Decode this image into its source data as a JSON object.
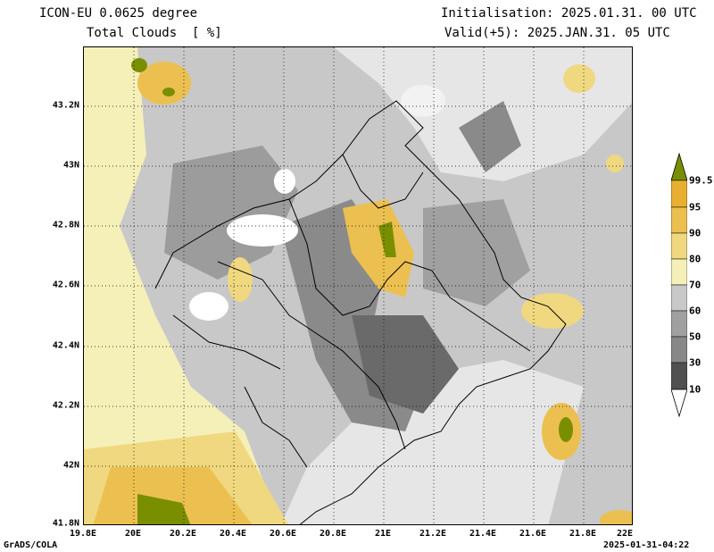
{
  "header": {
    "model": "ICON-EU 0.0625 degree",
    "field": "Total Clouds  [ %]",
    "init": "Initialisation: 2025.01.31. 00 UTC",
    "valid": "Valid(+5): 2025.JAN.31. 05 UTC"
  },
  "footer": {
    "credit": "GrADS/COLA",
    "timestamp": "2025-01-31-04:22"
  },
  "map": {
    "x_ticks": [
      "19.8E",
      "20E",
      "20.2E",
      "20.4E",
      "20.6E",
      "20.8E",
      "21E",
      "21.2E",
      "21.4E",
      "21.6E",
      "21.8E",
      "22E"
    ],
    "y_ticks": [
      "43.2N",
      "43N",
      "42.8N",
      "42.6N",
      "42.4N",
      "42.2N",
      "42N",
      "41.8N"
    ],
    "lon_range": [
      19.8,
      22.0
    ],
    "lat_range": [
      41.8,
      43.4
    ],
    "grid": "dotted",
    "region": "Kosovo and surroundings"
  },
  "legend": {
    "labels": [
      "99.5",
      "95",
      "90",
      "80",
      "70",
      "60",
      "50",
      "30",
      "10"
    ],
    "colors": [
      "#7a8f00",
      "#e8b030",
      "#ecc050",
      "#f0d880",
      "#f5f0b8",
      "#c8c8c8",
      "#a0a0a0",
      "#888888",
      "#6a6a6a",
      "#505050",
      "#ffffff"
    ],
    "icon": "color-scale-arrows"
  }
}
